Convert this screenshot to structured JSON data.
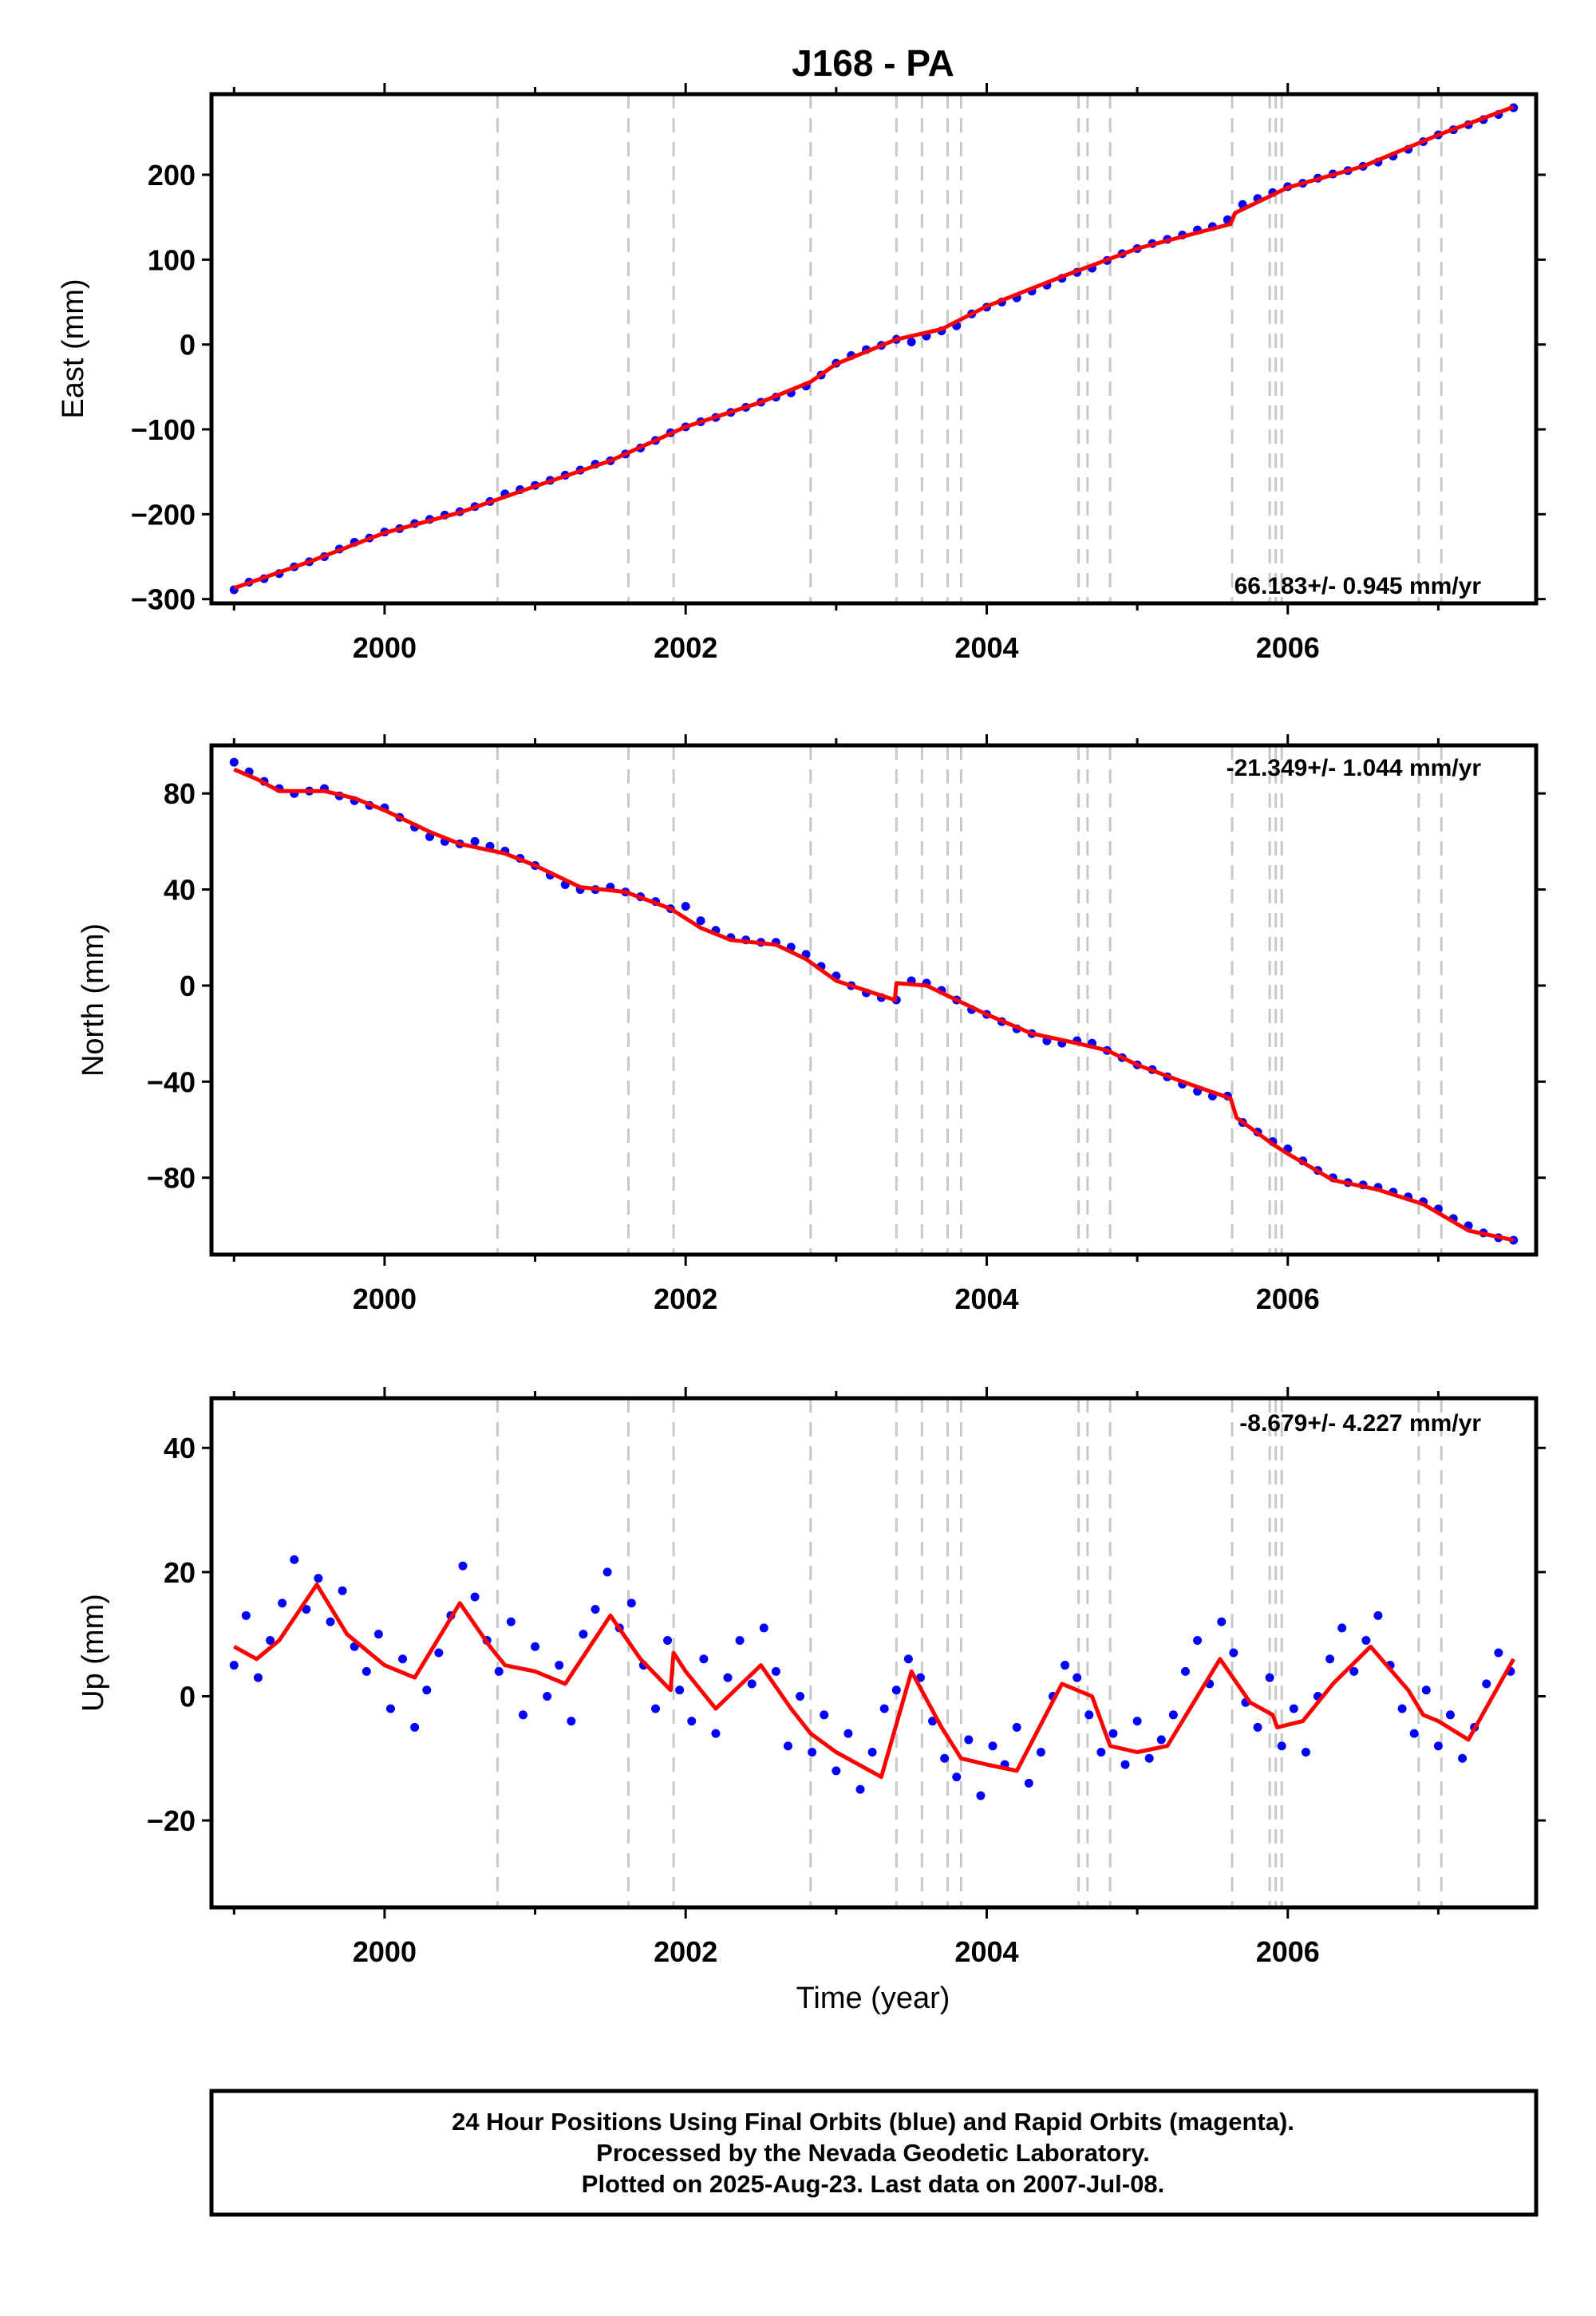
{
  "figure": {
    "title": "J168 - PA",
    "footer": {
      "line1": "24 Hour Positions Using Final Orbits (blue) and Rapid Orbits (magenta).",
      "line2": "Processed by the Nevada Geodetic Laboratory.",
      "line3": "Plotted on 2025-Aug-23. Last data on 2007-Jul-08."
    }
  },
  "colors": {
    "data_points": "#0000ff",
    "model_line": "#ff0000",
    "event_lines": "#c8c8c8",
    "frame": "#000000"
  },
  "chart_data": [
    {
      "type": "scatter",
      "component": "east",
      "ylabel": "East (mm)",
      "xlabel": "",
      "rate_label": "66.183+/- 0.945 mm/yr",
      "xlim": [
        1998.85,
        2007.65
      ],
      "ylim": [
        -305,
        295
      ],
      "yticks": [
        200,
        100,
        0,
        -100,
        -200,
        -300
      ],
      "xticks": [
        2000,
        2002,
        2004,
        2006
      ],
      "grid": false,
      "event_lines": [
        2000.75,
        2001.62,
        2001.92,
        2002.83,
        2003.4,
        2003.57,
        2003.74,
        2003.83,
        2004.61,
        2004.67,
        2004.82,
        2005.63,
        2005.88,
        2005.92,
        2005.96,
        2006.87,
        2007.02
      ],
      "model": {
        "x": [
          1999.0,
          1999.5,
          2000.0,
          2000.5,
          2001.0,
          2001.5,
          2002.0,
          2002.5,
          2002.83,
          2003.0,
          2003.4,
          2003.7,
          2004.0,
          2004.5,
          2005.0,
          2005.62,
          2005.65,
          2006.0,
          2006.5,
          2007.0,
          2007.5
        ],
        "y": [
          -287,
          -256,
          -222,
          -198,
          -167,
          -137,
          -97,
          -68,
          -44,
          -23,
          6,
          18,
          45,
          80,
          113,
          142,
          155,
          185,
          210,
          247,
          280
        ]
      },
      "points": {
        "x": [
          1999.0,
          1999.1,
          1999.2,
          1999.3,
          1999.4,
          1999.5,
          1999.6,
          1999.7,
          1999.8,
          1999.9,
          2000.0,
          2000.1,
          2000.2,
          2000.3,
          2000.4,
          2000.5,
          2000.6,
          2000.7,
          2000.8,
          2000.9,
          2001.0,
          2001.1,
          2001.2,
          2001.3,
          2001.4,
          2001.5,
          2001.6,
          2001.7,
          2001.8,
          2001.9,
          2002.0,
          2002.1,
          2002.2,
          2002.3,
          2002.4,
          2002.5,
          2002.6,
          2002.7,
          2002.8,
          2002.9,
          2003.0,
          2003.1,
          2003.2,
          2003.3,
          2003.4,
          2003.5,
          2003.6,
          2003.7,
          2003.8,
          2003.9,
          2004.0,
          2004.1,
          2004.2,
          2004.3,
          2004.4,
          2004.5,
          2004.6,
          2004.7,
          2004.8,
          2004.9,
          2005.0,
          2005.1,
          2005.2,
          2005.3,
          2005.4,
          2005.5,
          2005.6,
          2005.7,
          2005.8,
          2005.9,
          2006.0,
          2006.1,
          2006.2,
          2006.3,
          2006.4,
          2006.5,
          2006.6,
          2006.7,
          2006.8,
          2006.9,
          2007.0,
          2007.1,
          2007.2,
          2007.3,
          2007.4,
          2007.5
        ],
        "y": [
          -289,
          -280,
          -276,
          -270,
          -262,
          -256,
          -250,
          -241,
          -233,
          -228,
          -221,
          -217,
          -211,
          -206,
          -201,
          -197,
          -191,
          -185,
          -176,
          -171,
          -166,
          -160,
          -154,
          -148,
          -141,
          -137,
          -129,
          -122,
          -113,
          -104,
          -97,
          -91,
          -86,
          -80,
          -74,
          -68,
          -62,
          -57,
          -49,
          -36,
          -22,
          -13,
          -6,
          -1,
          6,
          3,
          10,
          16,
          22,
          36,
          44,
          50,
          55,
          63,
          70,
          78,
          85,
          90,
          99,
          107,
          113,
          119,
          124,
          129,
          135,
          139,
          147,
          165,
          172,
          179,
          186,
          190,
          196,
          201,
          205,
          210,
          215,
          222,
          230,
          239,
          247,
          253,
          259,
          265,
          271,
          279
        ]
      }
    },
    {
      "type": "scatter",
      "component": "north",
      "ylabel": "North (mm)",
      "xlabel": "",
      "rate_label": "-21.349+/- 1.044 mm/yr",
      "xlim": [
        1998.85,
        2007.65
      ],
      "ylim": [
        -112,
        100
      ],
      "yticks": [
        80,
        40,
        0,
        -40,
        -80
      ],
      "xticks": [
        2000,
        2002,
        2004,
        2006
      ],
      "grid": false,
      "event_lines": [
        2000.75,
        2001.62,
        2001.92,
        2002.83,
        2003.4,
        2003.57,
        2003.74,
        2003.83,
        2004.61,
        2004.67,
        2004.82,
        2005.63,
        2005.88,
        2005.92,
        2005.96,
        2006.87,
        2007.02
      ],
      "model": {
        "x": [
          1999.0,
          1999.15,
          1999.3,
          1999.6,
          1999.8,
          2000.0,
          2000.3,
          2000.5,
          2000.8,
          2001.0,
          2001.3,
          2001.6,
          2001.9,
          2002.1,
          2002.3,
          2002.6,
          2002.8,
          2003.0,
          2003.39,
          2003.4,
          2003.6,
          2003.8,
          2004.0,
          2004.3,
          2004.6,
          2004.8,
          2005.0,
          2005.3,
          2005.62,
          2005.66,
          2005.9,
          2006.0,
          2006.3,
          2006.6,
          2006.9,
          2007.2,
          2007.5
        ],
        "y": [
          90,
          86,
          81,
          81,
          78,
          73,
          64,
          59,
          55,
          50,
          41,
          39,
          32,
          24,
          19,
          17,
          11,
          2,
          -6,
          1,
          0,
          -6,
          -12,
          -20,
          -24,
          -27,
          -33,
          -40,
          -47,
          -55,
          -66,
          -70,
          -81,
          -85,
          -91,
          -102,
          -106
        ]
      },
      "points": {
        "x": [
          1999.0,
          1999.1,
          1999.2,
          1999.3,
          1999.4,
          1999.5,
          1999.6,
          1999.7,
          1999.8,
          1999.9,
          2000.0,
          2000.1,
          2000.2,
          2000.3,
          2000.4,
          2000.5,
          2000.6,
          2000.7,
          2000.8,
          2000.9,
          2001.0,
          2001.1,
          2001.2,
          2001.3,
          2001.4,
          2001.5,
          2001.6,
          2001.7,
          2001.8,
          2001.9,
          2002.0,
          2002.1,
          2002.2,
          2002.3,
          2002.4,
          2002.5,
          2002.6,
          2002.7,
          2002.8,
          2002.9,
          2003.0,
          2003.1,
          2003.2,
          2003.3,
          2003.4,
          2003.5,
          2003.6,
          2003.7,
          2003.8,
          2003.9,
          2004.0,
          2004.1,
          2004.2,
          2004.3,
          2004.4,
          2004.5,
          2004.6,
          2004.7,
          2004.8,
          2004.9,
          2005.0,
          2005.1,
          2005.2,
          2005.3,
          2005.4,
          2005.5,
          2005.6,
          2005.7,
          2005.8,
          2005.9,
          2006.0,
          2006.1,
          2006.2,
          2006.3,
          2006.4,
          2006.5,
          2006.6,
          2006.7,
          2006.8,
          2006.9,
          2007.0,
          2007.1,
          2007.2,
          2007.3,
          2007.4,
          2007.5
        ],
        "y": [
          93,
          89,
          85,
          82,
          80,
          81,
          82,
          79,
          77,
          75,
          74,
          70,
          66,
          62,
          60,
          59,
          60,
          58,
          56,
          53,
          50,
          46,
          42,
          40,
          40,
          41,
          39,
          37,
          35,
          32,
          33,
          27,
          23,
          20,
          19,
          18,
          18,
          16,
          13,
          8,
          4,
          0,
          -3,
          -5,
          -6,
          2,
          1,
          -2,
          -6,
          -10,
          -12,
          -15,
          -18,
          -20,
          -23,
          -24,
          -23,
          -24,
          -27,
          -30,
          -33,
          -35,
          -38,
          -41,
          -44,
          -46,
          -46,
          -57,
          -61,
          -65,
          -68,
          -73,
          -77,
          -80,
          -82,
          -83,
          -84,
          -86,
          -88,
          -90,
          -93,
          -97,
          -100,
          -103,
          -105,
          -106
        ]
      }
    },
    {
      "type": "scatter",
      "component": "up",
      "ylabel": "Up (mm)",
      "xlabel": "Time (year)",
      "rate_label": "-8.679+/- 4.227 mm/yr",
      "xlim": [
        1998.85,
        2007.65
      ],
      "ylim": [
        -34,
        48
      ],
      "yticks": [
        40,
        20,
        0,
        -20
      ],
      "xticks": [
        2000,
        2002,
        2004,
        2006
      ],
      "grid": false,
      "event_lines": [
        2000.75,
        2001.62,
        2001.92,
        2002.83,
        2003.4,
        2003.57,
        2003.74,
        2003.83,
        2004.61,
        2004.67,
        2004.82,
        2005.63,
        2005.88,
        2005.92,
        2005.96,
        2006.87,
        2007.02
      ],
      "model": {
        "x": [
          1999.0,
          1999.15,
          1999.3,
          1999.55,
          1999.75,
          2000.0,
          2000.2,
          2000.5,
          2000.7,
          2000.8,
          2001.0,
          2001.2,
          2001.5,
          2001.7,
          2001.9,
          2001.92,
          2002.0,
          2002.2,
          2002.5,
          2002.7,
          2002.83,
          2003.0,
          2003.3,
          2003.5,
          2003.7,
          2003.83,
          2004.0,
          2004.2,
          2004.5,
          2004.7,
          2004.82,
          2005.0,
          2005.2,
          2005.55,
          2005.75,
          2005.9,
          2005.93,
          2006.1,
          2006.3,
          2006.55,
          2006.8,
          2006.9,
          2007.0,
          2007.2,
          2007.5
        ],
        "y": [
          8,
          6,
          9,
          18,
          10,
          5,
          3,
          15,
          8,
          5,
          4,
          2,
          13,
          6,
          1,
          7,
          4,
          -2,
          5,
          -2,
          -6,
          -9,
          -13,
          4,
          -5,
          -10,
          -11,
          -12,
          2,
          0,
          -8,
          -9,
          -8,
          6,
          -1,
          -3,
          -5,
          -4,
          2,
          8,
          1,
          -3,
          -4,
          -7,
          6
        ]
      },
      "points": {
        "x": [
          1999.0,
          1999.08,
          1999.16,
          1999.24,
          1999.32,
          1999.4,
          1999.48,
          1999.56,
          1999.64,
          1999.72,
          1999.8,
          1999.88,
          1999.96,
          2000.04,
          2000.12,
          2000.2,
          2000.28,
          2000.36,
          2000.44,
          2000.52,
          2000.6,
          2000.68,
          2000.76,
          2000.84,
          2000.92,
          2001.0,
          2001.08,
          2001.16,
          2001.24,
          2001.32,
          2001.4,
          2001.48,
          2001.56,
          2001.64,
          2001.72,
          2001.8,
          2001.88,
          2001.96,
          2002.04,
          2002.12,
          2002.2,
          2002.28,
          2002.36,
          2002.44,
          2002.52,
          2002.6,
          2002.68,
          2002.76,
          2002.84,
          2002.92,
          2003.0,
          2003.08,
          2003.16,
          2003.24,
          2003.32,
          2003.4,
          2003.48,
          2003.56,
          2003.64,
          2003.72,
          2003.8,
          2003.88,
          2003.96,
          2004.04,
          2004.12,
          2004.2,
          2004.28,
          2004.36,
          2004.44,
          2004.52,
          2004.6,
          2004.68,
          2004.76,
          2004.84,
          2004.92,
          2005.0,
          2005.08,
          2005.16,
          2005.24,
          2005.32,
          2005.4,
          2005.48,
          2005.56,
          2005.64,
          2005.72,
          2005.8,
          2005.88,
          2005.96,
          2006.04,
          2006.12,
          2006.2,
          2006.28,
          2006.36,
          2006.44,
          2006.52,
          2006.6,
          2006.68,
          2006.76,
          2006.84,
          2006.92,
          2007.0,
          2007.08,
          2007.16,
          2007.24,
          2007.32,
          2007.4,
          2007.48
        ],
        "y": [
          5,
          13,
          3,
          9,
          15,
          22,
          14,
          19,
          12,
          17,
          8,
          4,
          10,
          -2,
          6,
          -5,
          1,
          7,
          13,
          21,
          16,
          9,
          4,
          12,
          -3,
          8,
          0,
          5,
          -4,
          10,
          14,
          20,
          11,
          15,
          5,
          -2,
          9,
          1,
          -4,
          6,
          -6,
          3,
          9,
          2,
          11,
          4,
          -8,
          0,
          -9,
          -3,
          -12,
          -6,
          -15,
          -9,
          -2,
          1,
          6,
          3,
          -4,
          -10,
          -13,
          -7,
          -16,
          -8,
          -11,
          -5,
          -14,
          -9,
          0,
          5,
          3,
          -3,
          -9,
          -6,
          -11,
          -4,
          -10,
          -7,
          -3,
          4,
          9,
          2,
          12,
          7,
          -1,
          -5,
          3,
          -8,
          -2,
          -9,
          0,
          6,
          11,
          4,
          9,
          13,
          5,
          -2,
          -6,
          1,
          -8,
          -3,
          -10,
          -5,
          2,
          7,
          4
        ]
      }
    }
  ]
}
